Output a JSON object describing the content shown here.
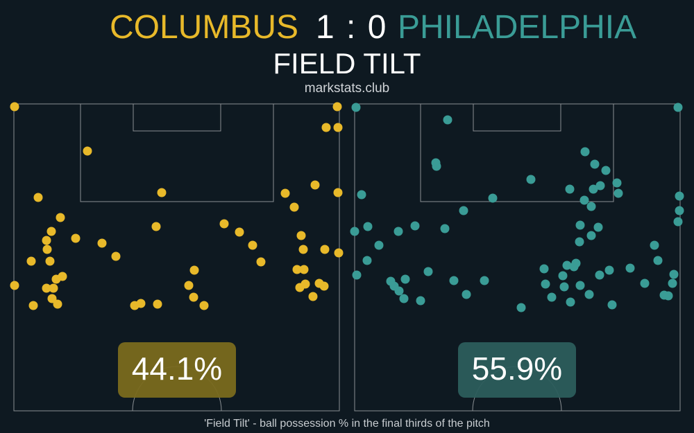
{
  "header": {
    "home_team": "COLUMBUS",
    "score": "1 : 0",
    "away_team": "PHILADELPHIA",
    "title": "FIELD TILT",
    "subtitle": "markstats.club"
  },
  "footnote": "'Field Tilt' - ball possession % in the final thirds of the pitch",
  "colors": {
    "background": "#0e1921",
    "home": "#e8b92a",
    "away": "#3a9c96",
    "home_badge": "#7a6a1e",
    "away_badge": "#2c5d5c",
    "lines": "#8a8f93"
  },
  "chart_data": {
    "type": "scatter",
    "series": [
      {
        "name": "COLUMBUS",
        "field_tilt_label": "44.1%",
        "field_tilt": 44.1,
        "points": [
          [
            21,
            154
          ],
          [
            486,
            154
          ],
          [
            470,
            184
          ],
          [
            487,
            184
          ],
          [
            126,
            218
          ],
          [
            233,
            278
          ],
          [
            411,
            279
          ],
          [
            454,
            267
          ],
          [
            487,
            278
          ],
          [
            55,
            285
          ],
          [
            424,
            299
          ],
          [
            87,
            314
          ],
          [
            74,
            334
          ],
          [
            109,
            344
          ],
          [
            67,
            347
          ],
          [
            68,
            360
          ],
          [
            147,
            351
          ],
          [
            323,
            323
          ],
          [
            345,
            335
          ],
          [
            225,
            327
          ],
          [
            364,
            354
          ],
          [
            434,
            340
          ],
          [
            437,
            360
          ],
          [
            376,
            378
          ],
          [
            167,
            370
          ],
          [
            468,
            360
          ],
          [
            488,
            365
          ],
          [
            45,
            377
          ],
          [
            72,
            377
          ],
          [
            90,
            399
          ],
          [
            81,
            403
          ],
          [
            67,
            416
          ],
          [
            77,
            416
          ],
          [
            21,
            412
          ],
          [
            280,
            390
          ],
          [
            272,
            412
          ],
          [
            428,
            389
          ],
          [
            438,
            389
          ],
          [
            432,
            415
          ],
          [
            440,
            410
          ],
          [
            460,
            409
          ],
          [
            467,
            413
          ],
          [
            279,
            429
          ],
          [
            75,
            431
          ],
          [
            83,
            439
          ],
          [
            48,
            441
          ],
          [
            194,
            441
          ],
          [
            203,
            438
          ],
          [
            227,
            439
          ],
          [
            294,
            441
          ],
          [
            451,
            428
          ]
        ]
      },
      {
        "name": "PHILADELPHIA",
        "field_tilt_label": "55.9%",
        "field_tilt": 55.9,
        "points": [
          [
            513,
            155
          ],
          [
            977,
            155
          ],
          [
            645,
            173
          ],
          [
            843,
            219
          ],
          [
            857,
            237
          ],
          [
            628,
            235
          ],
          [
            629,
            240
          ],
          [
            873,
            246
          ],
          [
            765,
            259
          ],
          [
            889,
            264
          ],
          [
            891,
            279
          ],
          [
            821,
            273
          ],
          [
            855,
            273
          ],
          [
            865,
            268
          ],
          [
            521,
            281
          ],
          [
            710,
            286
          ],
          [
            842,
            289
          ],
          [
            852,
            298
          ],
          [
            979,
            283
          ],
          [
            979,
            304
          ],
          [
            668,
            304
          ],
          [
            530,
            327
          ],
          [
            598,
            326
          ],
          [
            574,
            334
          ],
          [
            641,
            330
          ],
          [
            511,
            334
          ],
          [
            836,
            325
          ],
          [
            862,
            328
          ],
          [
            852,
            340
          ],
          [
            977,
            320
          ],
          [
            546,
            354
          ],
          [
            835,
            349
          ],
          [
            943,
            354
          ],
          [
            529,
            376
          ],
          [
            817,
            383
          ],
          [
            830,
            380
          ],
          [
            784,
            388
          ],
          [
            827,
            385
          ],
          [
            811,
            398
          ],
          [
            878,
            390
          ],
          [
            948,
            376
          ],
          [
            908,
            387
          ],
          [
            971,
            396
          ],
          [
            514,
            397
          ],
          [
            563,
            406
          ],
          [
            584,
            403
          ],
          [
            617,
            392
          ],
          [
            654,
            405
          ],
          [
            698,
            405
          ],
          [
            568,
            413
          ],
          [
            575,
            420
          ],
          [
            813,
            414
          ],
          [
            836,
            412
          ],
          [
            864,
            397
          ],
          [
            929,
            409
          ],
          [
            969,
            409
          ],
          [
            786,
            410
          ],
          [
            582,
            431
          ],
          [
            606,
            434
          ],
          [
            672,
            425
          ],
          [
            795,
            429
          ],
          [
            822,
            436
          ],
          [
            849,
            425
          ],
          [
            957,
            426
          ],
          [
            963,
            427
          ],
          [
            751,
            444
          ],
          [
            882,
            440
          ]
        ]
      }
    ]
  }
}
